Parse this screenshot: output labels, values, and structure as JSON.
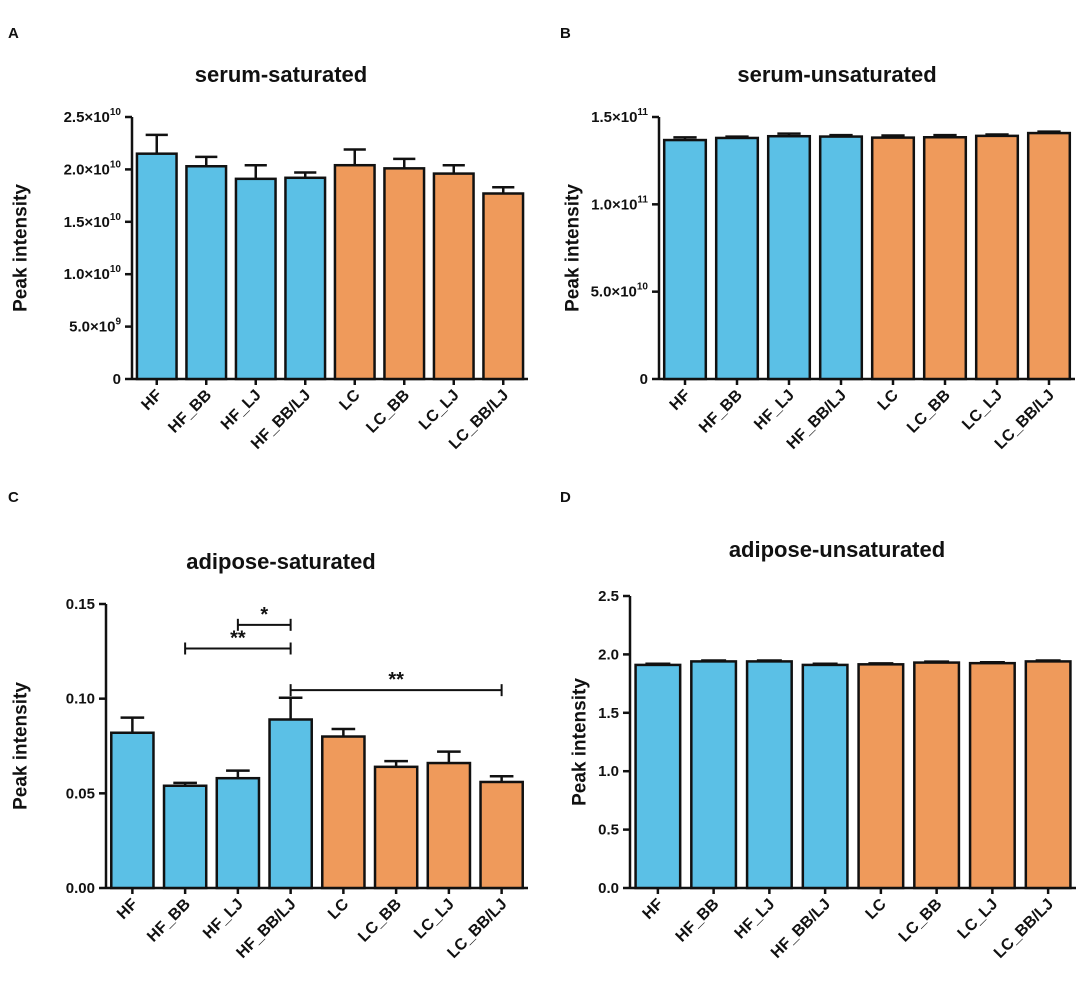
{
  "colors": {
    "hf": "#5bc0e6",
    "lc": "#ef9a5b",
    "stroke": "#111111"
  },
  "chart_data": [
    {
      "panel": "A",
      "type": "bar",
      "title": "serum-saturated",
      "ylabel": "Peak intensity",
      "xlabel": "",
      "ylim": [
        0,
        25000000000
      ],
      "yticks": [
        0,
        5000000000,
        10000000000,
        15000000000,
        20000000000,
        25000000000
      ],
      "ytick_labels": [
        {
          "mantissa": "0",
          "exp": ""
        },
        {
          "mantissa": "5.0×10",
          "exp": "9"
        },
        {
          "mantissa": "1.0×10",
          "exp": "10"
        },
        {
          "mantissa": "1.5×10",
          "exp": "10"
        },
        {
          "mantissa": "2.0×10",
          "exp": "10"
        },
        {
          "mantissa": "2.5×10",
          "exp": "10"
        }
      ],
      "categories": [
        "HF",
        "HF_BB",
        "HF_LJ",
        "HF_BB/LJ",
        "LC",
        "LC_BB",
        "LC_LJ",
        "LC_BB/LJ"
      ],
      "values": [
        21500000000,
        20300000000,
        19100000000,
        19200000000,
        20400000000,
        20100000000,
        19600000000,
        17700000000
      ],
      "errors": [
        1800000000,
        900000000,
        1300000000,
        500000000,
        1500000000,
        900000000,
        800000000,
        600000000
      ],
      "groups": [
        "hf",
        "hf",
        "hf",
        "hf",
        "lc",
        "lc",
        "lc",
        "lc"
      ],
      "annotations": []
    },
    {
      "panel": "B",
      "type": "bar",
      "title": "serum-unsaturated",
      "ylabel": "Peak intensity",
      "xlabel": "",
      "ylim": [
        0,
        150000000000
      ],
      "yticks": [
        0,
        50000000000,
        100000000000,
        150000000000
      ],
      "ytick_labels": [
        {
          "mantissa": "0",
          "exp": ""
        },
        {
          "mantissa": "5.0×10",
          "exp": "10"
        },
        {
          "mantissa": "1.0×10",
          "exp": "11"
        },
        {
          "mantissa": "1.5×10",
          "exp": "11"
        }
      ],
      "categories": [
        "HF",
        "HF_BB",
        "HF_LJ",
        "HF_BB/LJ",
        "LC",
        "LC_BB",
        "LC_LJ",
        "LC_BB/LJ"
      ],
      "values": [
        136800000000,
        138000000000,
        139000000000,
        138800000000,
        138200000000,
        138400000000,
        139200000000,
        140800000000
      ],
      "errors": [
        1500000000,
        800000000,
        1500000000,
        800000000,
        1200000000,
        1200000000,
        800000000,
        800000000
      ],
      "groups": [
        "hf",
        "hf",
        "hf",
        "hf",
        "lc",
        "lc",
        "lc",
        "lc"
      ],
      "annotations": []
    },
    {
      "panel": "C",
      "type": "bar",
      "title": "adipose-saturated",
      "ylabel": "Peak intensity",
      "xlabel": "",
      "ylim": [
        0,
        0.15
      ],
      "yticks": [
        0,
        0.05,
        0.1,
        0.15
      ],
      "ytick_labels": [
        {
          "mantissa": "0.00",
          "exp": ""
        },
        {
          "mantissa": "0.05",
          "exp": ""
        },
        {
          "mantissa": "0.10",
          "exp": ""
        },
        {
          "mantissa": "0.15",
          "exp": ""
        }
      ],
      "categories": [
        "HF",
        "HF_BB",
        "HF_LJ",
        "HF_BB/LJ",
        "LC",
        "LC_BB",
        "LC_LJ",
        "LC_BB/LJ"
      ],
      "values": [
        0.082,
        0.054,
        0.058,
        0.089,
        0.08,
        0.064,
        0.066,
        0.056
      ],
      "errors": [
        0.008,
        0.0015,
        0.004,
        0.0115,
        0.004,
        0.003,
        0.006,
        0.003
      ],
      "groups": [
        "hf",
        "hf",
        "hf",
        "hf",
        "lc",
        "lc",
        "lc",
        "lc"
      ],
      "annotations": [
        {
          "from": 2,
          "to": 3,
          "y": 0.139,
          "label": "*"
        },
        {
          "from": 1,
          "to": 3,
          "y": 0.1265,
          "label": "**"
        },
        {
          "from": 3,
          "to": 7,
          "y": 0.1045,
          "label": "**"
        }
      ]
    },
    {
      "panel": "D",
      "type": "bar",
      "title": "adipose-unsaturated",
      "ylabel": "Peak intensity",
      "xlabel": "",
      "ylim": [
        0,
        2.5
      ],
      "yticks": [
        0,
        0.5,
        1.0,
        1.5,
        2.0,
        2.5
      ],
      "ytick_labels": [
        {
          "mantissa": "0.0",
          "exp": ""
        },
        {
          "mantissa": "0.5",
          "exp": ""
        },
        {
          "mantissa": "1.0",
          "exp": ""
        },
        {
          "mantissa": "1.5",
          "exp": ""
        },
        {
          "mantissa": "2.0",
          "exp": ""
        },
        {
          "mantissa": "2.5",
          "exp": ""
        }
      ],
      "categories": [
        "HF",
        "HF_BB",
        "HF_LJ",
        "HF_BB/LJ",
        "LC",
        "LC_BB",
        "LC_LJ",
        "LC_BB/LJ"
      ],
      "values": [
        1.91,
        1.94,
        1.94,
        1.91,
        1.915,
        1.93,
        1.925,
        1.94
      ],
      "errors": [
        0.01,
        0.008,
        0.008,
        0.01,
        0.008,
        0.008,
        0.008,
        0.008
      ],
      "groups": [
        "hf",
        "hf",
        "hf",
        "hf",
        "lc",
        "lc",
        "lc",
        "lc"
      ],
      "annotations": []
    }
  ]
}
